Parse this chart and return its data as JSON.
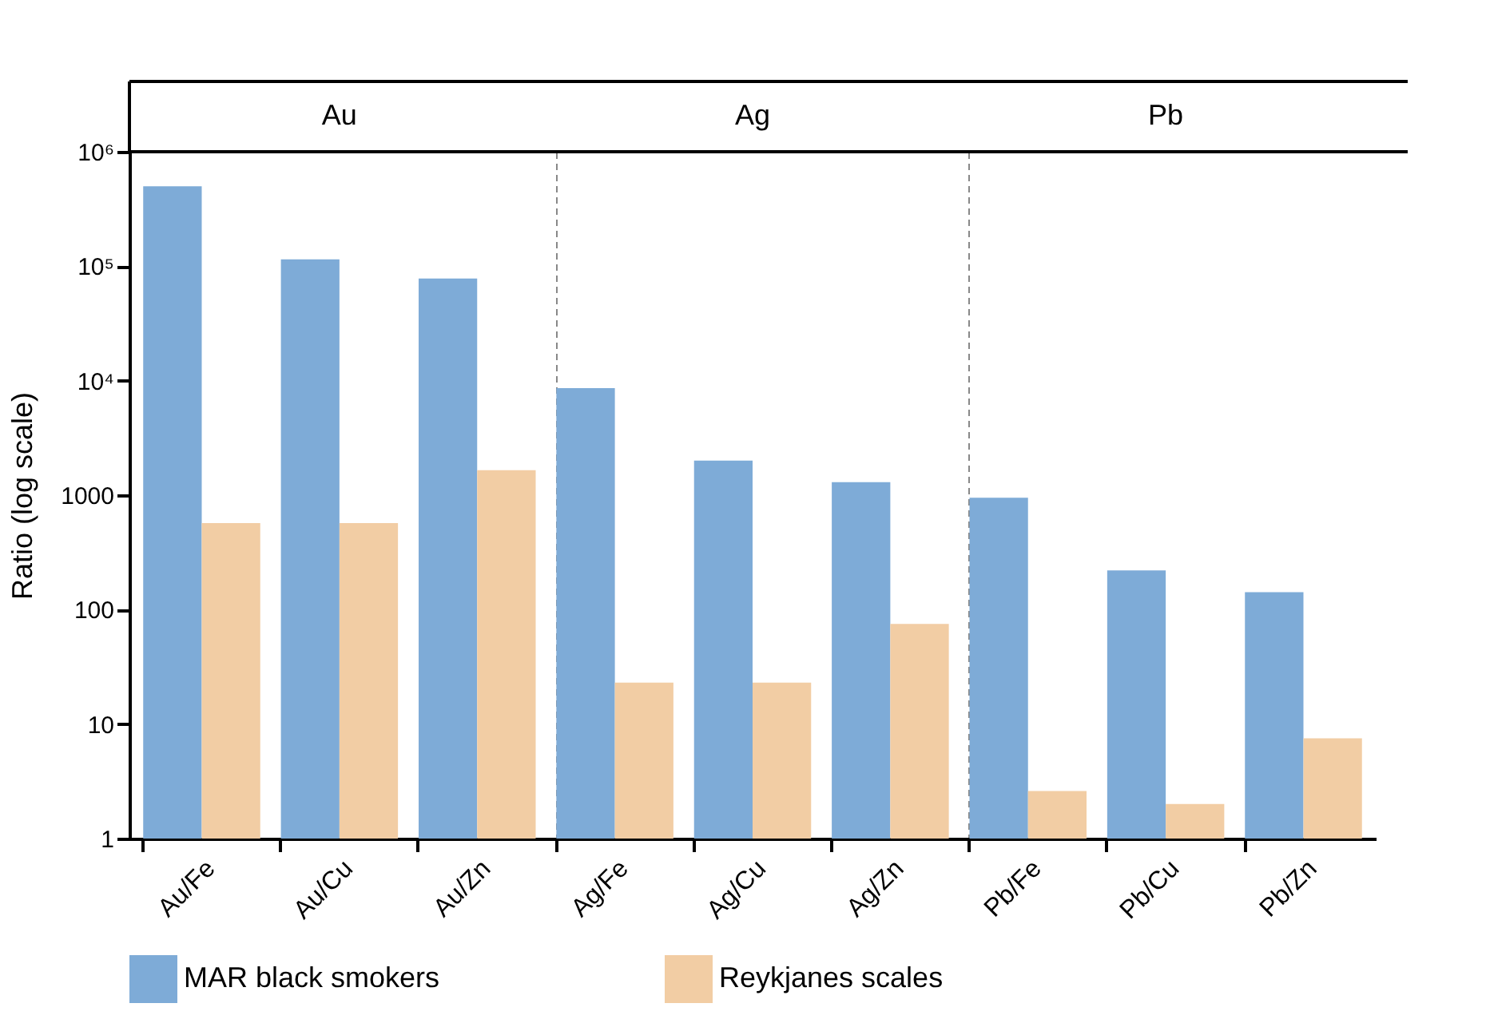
{
  "chart_data": {
    "type": "bar",
    "ylabel": "Ratio (log scale)",
    "categories": [
      "Au/Fe",
      "Au/Cu",
      "Au/Zn",
      "Ag/Fe",
      "Ag/Cu",
      "Ag/Zn",
      "Pb/Fe",
      "Pb/Cu",
      "Pb/Zn"
    ],
    "series": [
      {
        "name": "MAR black smokers",
        "color": "#7eabd7",
        "values": [
          500000,
          115000,
          78000,
          8600,
          2000,
          1300,
          950,
          220,
          142
        ]
      },
      {
        "name": "Reykjanes scales",
        "color": "#f2cda4",
        "values": [
          570,
          570,
          1650,
          23,
          23,
          75,
          2.6,
          2.0,
          7.5
        ]
      }
    ],
    "annotations": [
      "Au",
      "Ag",
      "Pb"
    ],
    "log": "y",
    "ylim": [
      1,
      1000000
    ],
    "yticks": [
      1,
      10,
      100,
      1000,
      {
        "value": 10000,
        "label": "10⁴"
      },
      {
        "value": 100000,
        "label": "10⁵"
      },
      {
        "value": 1000000,
        "label": "10⁶"
      }
    ],
    "grid": false,
    "legend": "bottom"
  }
}
